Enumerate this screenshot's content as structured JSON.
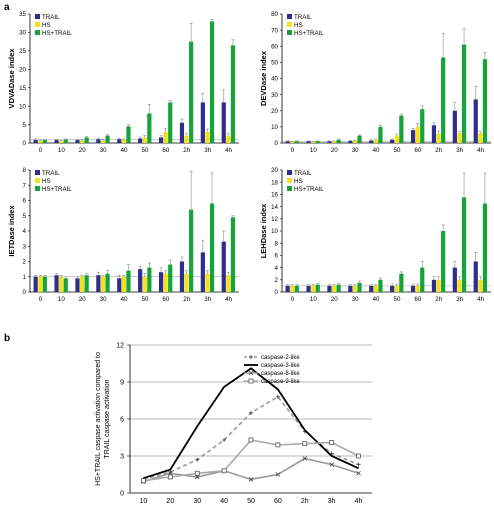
{
  "panels": {
    "a": "a",
    "b": "b"
  },
  "colors": {
    "TRAIL": "#2e2e8c",
    "HS": "#f2e21c",
    "HS+TRAIL": "#16a33a",
    "errorbar": "#888888"
  },
  "chart_data": [
    {
      "type": "bar",
      "categories": [
        "0",
        "10",
        "20",
        "30",
        "40",
        "50",
        "60",
        "2h",
        "3h",
        "4h"
      ],
      "ylabel": "VDVADase index",
      "ylim": [
        0,
        35
      ],
      "yticks": [
        0,
        5,
        10,
        15,
        20,
        25,
        30,
        35
      ],
      "legend": "top-left",
      "series": [
        {
          "name": "TRAIL",
          "values": [
            0.8,
            0.8,
            0.8,
            1,
            1,
            1.2,
            1.5,
            5.5,
            11,
            11
          ],
          "errors": [
            0.3,
            0.2,
            0.2,
            0.3,
            0.3,
            0.4,
            0.5,
            1,
            2.5,
            3.5
          ]
        },
        {
          "name": "HS",
          "values": [
            0.6,
            0.5,
            0.6,
            0.7,
            0.8,
            1.5,
            3,
            2,
            3,
            2
          ],
          "errors": [
            0.2,
            0.2,
            0.2,
            0.2,
            0.3,
            0.5,
            1,
            0.5,
            0.8,
            0.5
          ]
        },
        {
          "name": "HS+TRAIL",
          "values": [
            0.8,
            0.9,
            1.5,
            2,
            4.5,
            8,
            11,
            27.5,
            33,
            26.5
          ],
          "errors": [
            0.2,
            0.2,
            0.3,
            0.3,
            0.5,
            2.5,
            0.5,
            5,
            0.5,
            1.5
          ]
        }
      ]
    },
    {
      "type": "bar",
      "categories": [
        "0",
        "10",
        "20",
        "30",
        "40",
        "50",
        "60",
        "2h",
        "3h",
        "4h"
      ],
      "ylabel": "DEVDase index",
      "ylim": [
        0,
        80
      ],
      "yticks": [
        0,
        10,
        20,
        30,
        40,
        50,
        60,
        70,
        80
      ],
      "legend": "top-left",
      "series": [
        {
          "name": "TRAIL",
          "values": [
            1,
            1,
            1,
            1.2,
            1.5,
            2,
            8,
            11,
            20,
            27
          ],
          "errors": [
            0.3,
            0.3,
            0.3,
            0.5,
            0.5,
            0.5,
            1,
            1.5,
            5,
            8
          ]
        },
        {
          "name": "HS",
          "values": [
            0.8,
            0.8,
            1,
            1.5,
            2,
            4.5,
            10,
            6,
            6,
            6
          ],
          "errors": [
            0.2,
            0.2,
            0.2,
            0.3,
            0.5,
            1,
            2,
            1.5,
            1,
            1
          ]
        },
        {
          "name": "HS+TRAIL",
          "values": [
            1,
            1,
            2,
            4.5,
            10,
            17,
            21,
            53,
            61,
            52
          ],
          "errors": [
            0.3,
            0.3,
            0.5,
            0.5,
            1,
            1,
            2,
            15,
            10,
            4
          ]
        }
      ]
    },
    {
      "type": "bar",
      "categories": [
        "0",
        "10",
        "20",
        "30",
        "40",
        "50",
        "60",
        "2h",
        "3h",
        "4h"
      ],
      "ylabel": "IETDase index",
      "ylim": [
        0,
        8
      ],
      "yticks": [
        0,
        1,
        2,
        3,
        4,
        5,
        6,
        7,
        8
      ],
      "legend": "top-left",
      "series": [
        {
          "name": "TRAIL",
          "values": [
            1,
            1.1,
            0.9,
            1.1,
            0.9,
            1.5,
            1.3,
            2,
            2.6,
            3.3
          ],
          "errors": [
            0.1,
            0.1,
            0.1,
            0.2,
            0.2,
            0.2,
            0.3,
            0.3,
            0.8,
            0.7
          ]
        },
        {
          "name": "HS",
          "values": [
            1,
            1,
            1,
            1,
            1,
            1,
            1.2,
            1.2,
            1.2,
            1.1
          ],
          "errors": [
            0.1,
            0.1,
            0.1,
            0.1,
            0.1,
            0.2,
            0.2,
            0.2,
            0.2,
            0.2
          ]
        },
        {
          "name": "HS+TRAIL",
          "values": [
            1,
            0.9,
            1.1,
            1.2,
            1.4,
            1.6,
            1.8,
            5.4,
            5.8,
            4.9
          ],
          "errors": [
            0.1,
            0.1,
            0.1,
            0.2,
            0.4,
            0.3,
            0.3,
            2.5,
            2,
            0.1
          ]
        }
      ]
    },
    {
      "type": "bar",
      "categories": [
        "0",
        "10",
        "20",
        "30",
        "40",
        "50",
        "60",
        "2h",
        "3h",
        "4h"
      ],
      "ylabel": "LEHDase index",
      "ylim": [
        0,
        20
      ],
      "yticks": [
        0,
        2,
        4,
        6,
        8,
        10,
        12,
        14,
        16,
        18,
        20
      ],
      "legend": "top-left",
      "series": [
        {
          "name": "TRAIL",
          "values": [
            1,
            1,
            1,
            1,
            1,
            1,
            1,
            2,
            4,
            5
          ],
          "errors": [
            0.2,
            0.2,
            0.2,
            0.2,
            0.2,
            0.3,
            0.3,
            0.5,
            1,
            1.5
          ]
        },
        {
          "name": "HS",
          "values": [
            1,
            1,
            1,
            1,
            1,
            1,
            1,
            2,
            2,
            2
          ],
          "errors": [
            0.2,
            0.2,
            0.2,
            0.2,
            0.2,
            0.3,
            0.3,
            0.5,
            0.5,
            0.5
          ]
        },
        {
          "name": "HS+TRAIL",
          "values": [
            1,
            1.2,
            1.2,
            1.5,
            2,
            3,
            4,
            10,
            15.5,
            14.5
          ],
          "errors": [
            0.2,
            0.2,
            0.2,
            0.3,
            0.3,
            0.3,
            1,
            1,
            4,
            5
          ]
        }
      ]
    },
    {
      "type": "line",
      "categories": [
        "10",
        "20",
        "30",
        "40",
        "50",
        "60",
        "2h",
        "3h",
        "4h"
      ],
      "ylabel": "HS+TRAIL caspase activation compared to TRAIL caspase activation",
      "ylim": [
        0,
        12
      ],
      "yticks": [
        0,
        3,
        6,
        9,
        12
      ],
      "grid": true,
      "legend": "top-right",
      "series": [
        {
          "name": "caspase-2-like",
          "values": [
            1.1,
            1.7,
            2.7,
            4.3,
            6.5,
            7.8,
            5,
            3.2,
            2.3
          ],
          "style": "dashed",
          "marker": "plus",
          "color": "#999999"
        },
        {
          "name": "caspase-3-like",
          "values": [
            1.2,
            1.9,
            5.4,
            8.6,
            10.1,
            8.4,
            5.1,
            3,
            2
          ],
          "style": "solid",
          "marker": "none",
          "color": "#000000"
        },
        {
          "name": "caspase-8-like",
          "values": [
            0.9,
            1.6,
            1.3,
            1.8,
            1.1,
            1.5,
            2.8,
            2.3,
            1.6
          ],
          "style": "solid",
          "marker": "x",
          "color": "#999999"
        },
        {
          "name": "caspase-9-like",
          "values": [
            1,
            1.3,
            1.6,
            1.8,
            4.3,
            3.9,
            4,
            4.1,
            3
          ],
          "style": "solid",
          "marker": "square",
          "color": "#aaaaaa"
        }
      ]
    }
  ]
}
